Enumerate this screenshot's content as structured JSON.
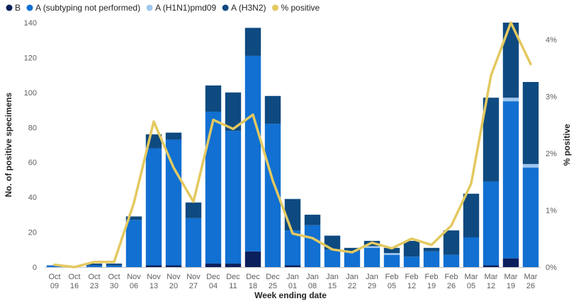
{
  "chart_data": {
    "type": "bar",
    "stacked": true,
    "categories": [
      [
        "Oct",
        "09"
      ],
      [
        "Oct",
        "16"
      ],
      [
        "Oct",
        "23"
      ],
      [
        "Oct",
        "30"
      ],
      [
        "Nov",
        "06"
      ],
      [
        "Nov",
        "13"
      ],
      [
        "Nov",
        "20"
      ],
      [
        "Nov",
        "27"
      ],
      [
        "Dec",
        "04"
      ],
      [
        "Dec",
        "11"
      ],
      [
        "Dec",
        "18"
      ],
      [
        "Dec",
        "25"
      ],
      [
        "Jan",
        "01"
      ],
      [
        "Jan",
        "08"
      ],
      [
        "Jan",
        "15"
      ],
      [
        "Jan",
        "22"
      ],
      [
        "Jan",
        "29"
      ],
      [
        "Feb",
        "05"
      ],
      [
        "Feb",
        "12"
      ],
      [
        "Feb",
        "19"
      ],
      [
        "Feb",
        "26"
      ],
      [
        "Mar",
        "05"
      ],
      [
        "Mar",
        "12"
      ],
      [
        "Mar",
        "19"
      ],
      [
        "Mar",
        "26"
      ]
    ],
    "series": [
      {
        "name": "B",
        "color": "#0b1f5c",
        "values": [
          0,
          0,
          0,
          0,
          0,
          1,
          1,
          0,
          2,
          2,
          9,
          0,
          1,
          0,
          0,
          0,
          0,
          0,
          0,
          0,
          0,
          0,
          1,
          5,
          0
        ]
      },
      {
        "name": "A (subtyping not performed)",
        "color": "#1170d2",
        "values": [
          1,
          0,
          1,
          1,
          27,
          67,
          72,
          28,
          87,
          76,
          112,
          82,
          20,
          24,
          10,
          9,
          11,
          7,
          6,
          9,
          7,
          17,
          48,
          90,
          57
        ]
      },
      {
        "name": "A (H1N1)pmd09",
        "color": "#9fc7ef",
        "values": [
          0,
          0,
          0,
          0,
          0,
          0,
          0,
          0,
          0,
          0,
          0,
          0,
          0,
          0,
          0,
          0,
          1,
          1,
          0,
          0,
          0,
          0,
          0,
          2,
          2
        ]
      },
      {
        "name": "A (H3N2)",
        "color": "#0e4a80",
        "values": [
          0,
          0,
          1,
          1,
          2,
          8,
          4,
          9,
          15,
          22,
          16,
          16,
          18,
          6,
          8,
          2,
          3,
          3,
          9,
          2,
          14,
          25,
          48,
          43,
          47
        ]
      }
    ],
    "line": {
      "name": "% positive",
      "color": "#e3c960",
      "values": [
        0.04,
        0.0,
        0.09,
        0.09,
        1.13,
        2.56,
        1.75,
        1.15,
        2.59,
        2.43,
        2.68,
        1.52,
        0.59,
        0.51,
        0.31,
        0.26,
        0.43,
        0.33,
        0.5,
        0.39,
        0.73,
        1.47,
        3.37,
        4.3,
        3.57
      ]
    },
    "xlabel": "Week ending date",
    "ylabel": "No. of positive specimens",
    "y2label": "% positive",
    "ylim": [
      0,
      140
    ],
    "yticks": [
      0,
      20,
      40,
      60,
      80,
      100,
      120,
      140
    ],
    "y2lim": [
      0,
      4.3
    ],
    "y2ticks": [
      "0%",
      "1%",
      "2%",
      "3%",
      "4%"
    ],
    "legend_position": "top-left",
    "grid": false
  }
}
